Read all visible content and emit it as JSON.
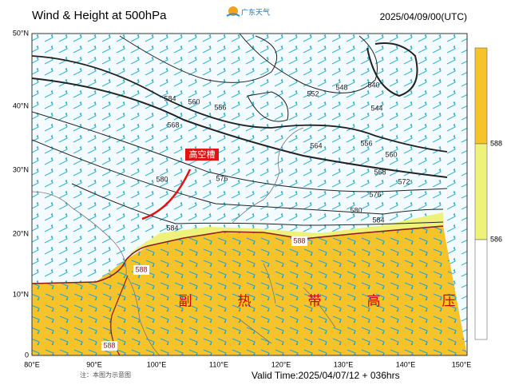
{
  "header": {
    "title": "Wind & Height at 500hPa",
    "logo": "广东天气",
    "datetime": "2025/04/09/00(UTC)"
  },
  "map": {
    "lon_ticks": [
      "80°E",
      "90°E",
      "100°E",
      "110°E",
      "120°E",
      "130°E",
      "140°E",
      "150°E"
    ],
    "lat_ticks": [
      "0",
      "10°N",
      "20°N",
      "30°N",
      "40°N",
      "50°N"
    ],
    "contour_labels": [
      "584",
      "560",
      "556",
      "568",
      "552",
      "548",
      "540",
      "544",
      "564",
      "556",
      "560",
      "568",
      "572",
      "576",
      "576",
      "580",
      "580",
      "584",
      "584",
      "588",
      "588",
      "588"
    ],
    "trough_label": "高空槽",
    "high_label": [
      "副",
      "热",
      "带",
      "高",
      "压"
    ]
  },
  "colorbar": {
    "labels": [
      "588",
      "586"
    ]
  },
  "footer": {
    "note": "注：本图为示意图",
    "valid": "Valid Time:2025/04/07/12 + 036hrs"
  }
}
